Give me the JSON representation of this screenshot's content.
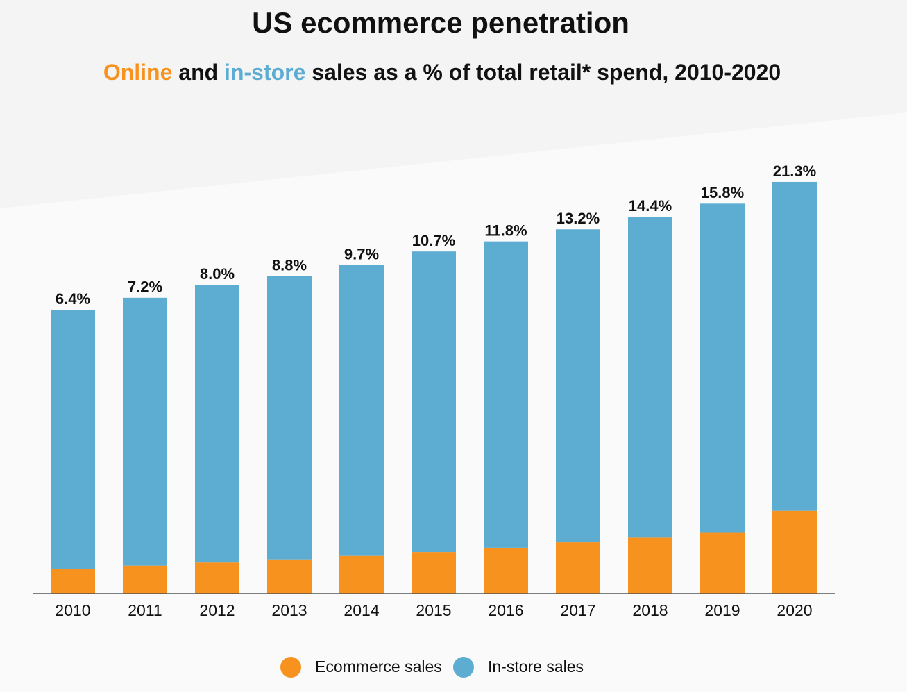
{
  "chart_data": {
    "type": "stacked_bar",
    "title": "US ecommerce penetration",
    "subtitle": [
      "Online",
      " and ",
      "in-store",
      " sales as a % of total retail* spend, 2010-2020"
    ],
    "categories": [
      "2010",
      "2011",
      "2012",
      "2013",
      "2014",
      "2015",
      "2016",
      "2017",
      "2018",
      "2019",
      "2020"
    ],
    "series": [
      {
        "name": "Ecommerce sales",
        "color": "#f7921e",
        "values": [
          6.4,
          7.2,
          8.0,
          8.8,
          9.7,
          10.7,
          11.8,
          13.2,
          14.4,
          15.8,
          21.3
        ],
        "value_labels": [
          "6.4%",
          "7.2%",
          "8.0%",
          "8.8%",
          "9.7%",
          "10.7%",
          "11.8%",
          "13.2%",
          "14.4%",
          "15.8%",
          "21.3%"
        ]
      },
      {
        "name": "In-store sales",
        "color": "#5dadd2",
        "values": [
          66.6,
          68.9,
          71.4,
          72.9,
          74.8,
          77.3,
          78.8,
          80.5,
          82.5,
          84.5,
          84.6
        ]
      }
    ],
    "ylim": [
      0,
      110
    ],
    "legend": "bottom"
  }
}
